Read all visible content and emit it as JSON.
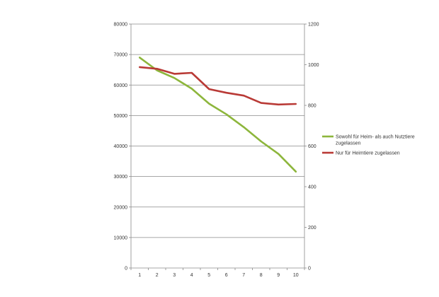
{
  "chart_data": {
    "type": "line",
    "title": "",
    "xlabel": "",
    "ylabel": "",
    "categories": [
      "1",
      "2",
      "3",
      "4",
      "5",
      "6",
      "7",
      "8",
      "9",
      "10"
    ],
    "y_left": {
      "min": 0,
      "max": 80000,
      "ticks": [
        "0",
        "10000",
        "20000",
        "30000",
        "40000",
        "50000",
        "60000",
        "70000",
        "80000"
      ]
    },
    "y_right": {
      "min": 0,
      "max": 1200,
      "ticks": [
        "0",
        "200",
        "400",
        "600",
        "800",
        "1000",
        "1200"
      ]
    },
    "grid": true,
    "legend_position": "right",
    "series": [
      {
        "name": "Sowohl für Heim- als auch Nutztiere zugelassen",
        "name_lines": [
          "Sowohl für Heim- als auch Nutztiere",
          "zugelassen"
        ],
        "axis": "left",
        "color": "#8db63c",
        "values": [
          69000,
          64800,
          62300,
          58800,
          53900,
          50400,
          46200,
          41500,
          37400,
          31600
        ]
      },
      {
        "name": "Nur für Heimtiere zugelassen",
        "name_lines": [
          "Nur für Heimtiere zugelassen"
        ],
        "axis": "right",
        "color": "#b93a36",
        "values": [
          988,
          980,
          955,
          960,
          880,
          862,
          848,
          812,
          804,
          807
        ]
      }
    ]
  }
}
